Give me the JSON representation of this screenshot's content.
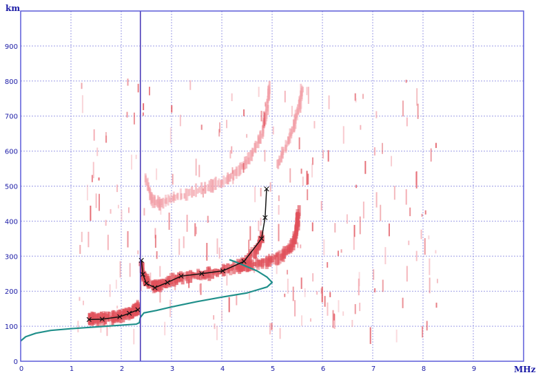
{
  "chart_data": {
    "type": "scatter",
    "title": "",
    "xlabel": "MHz",
    "ylabel": "km",
    "xlim": [
      0,
      10
    ],
    "ylim": [
      0,
      1000
    ],
    "x_ticks": [
      "0",
      "1",
      "2",
      "3",
      "4",
      "5",
      "6",
      "7",
      "8",
      "9"
    ],
    "y_ticks": [
      "0",
      "100",
      "200",
      "300",
      "400",
      "500",
      "600",
      "700",
      "800",
      "900"
    ],
    "grid": true,
    "cursor_x": 2.38,
    "colors": {
      "echo": "#e0505a",
      "echo_light": "#f2a0a8",
      "trace": "#111111",
      "profile": "#1f8f8a",
      "cursor": "#4a3bb8",
      "axis": "#5a5ad8",
      "grid": "#9a9ae6"
    },
    "series": [
      {
        "kind": "trace_markers",
        "points": [
          [
            1.36,
            119
          ],
          [
            1.62,
            120
          ],
          [
            1.97,
            127
          ],
          [
            2.16,
            137
          ],
          [
            2.33,
            147
          ],
          [
            2.4,
            288
          ],
          [
            2.43,
            248
          ],
          [
            2.5,
            222
          ],
          [
            2.67,
            210
          ],
          [
            2.92,
            225
          ],
          [
            3.19,
            243
          ],
          [
            3.6,
            250
          ],
          [
            4.02,
            258
          ],
          [
            4.44,
            285
          ],
          [
            4.79,
            350
          ],
          [
            4.86,
            410
          ],
          [
            4.89,
            492
          ]
        ]
      },
      {
        "kind": "profile_curve",
        "points": [
          [
            0.0,
            58
          ],
          [
            0.1,
            70
          ],
          [
            0.3,
            80
          ],
          [
            0.6,
            88
          ],
          [
            1.0,
            93
          ],
          [
            1.5,
            98
          ],
          [
            2.0,
            103
          ],
          [
            2.3,
            106
          ],
          [
            2.36,
            110
          ],
          [
            2.38,
            125
          ],
          [
            2.45,
            138
          ],
          [
            2.7,
            145
          ],
          [
            3.0,
            155
          ],
          [
            3.5,
            170
          ],
          [
            4.0,
            183
          ],
          [
            4.5,
            195
          ],
          [
            4.9,
            212
          ],
          [
            5.0,
            225
          ],
          [
            4.9,
            240
          ],
          [
            4.7,
            258
          ],
          [
            4.5,
            270
          ],
          [
            4.3,
            282
          ],
          [
            4.15,
            290
          ]
        ]
      },
      {
        "kind": "echo_E_layer",
        "points": [
          [
            1.35,
            120
          ],
          [
            1.5,
            121
          ],
          [
            1.7,
            123
          ],
          [
            1.9,
            127
          ],
          [
            2.05,
            132
          ],
          [
            2.2,
            140
          ],
          [
            2.3,
            148
          ],
          [
            2.36,
            155
          ]
        ]
      },
      {
        "kind": "echo_F_trace",
        "points": [
          [
            2.4,
            275
          ],
          [
            2.45,
            240
          ],
          [
            2.55,
            222
          ],
          [
            2.7,
            215
          ],
          [
            2.9,
            225
          ],
          [
            3.2,
            240
          ],
          [
            3.6,
            248
          ],
          [
            4.0,
            256
          ],
          [
            4.4,
            275
          ],
          [
            4.7,
            320
          ],
          [
            4.82,
            360
          ]
        ]
      },
      {
        "kind": "echo_F_extra",
        "points": [
          [
            4.3,
            268
          ],
          [
            4.6,
            275
          ],
          [
            4.9,
            285
          ],
          [
            5.2,
            300
          ],
          [
            5.4,
            330
          ],
          [
            5.5,
            380
          ],
          [
            5.52,
            430
          ]
        ]
      },
      {
        "kind": "echo_second_hop",
        "points": [
          [
            2.5,
            520
          ],
          [
            2.6,
            460
          ],
          [
            2.8,
            450
          ],
          [
            3.1,
            470
          ],
          [
            3.6,
            490
          ],
          [
            4.0,
            510
          ],
          [
            4.3,
            540
          ],
          [
            4.6,
            590
          ],
          [
            4.8,
            650
          ],
          [
            4.9,
            720
          ],
          [
            4.95,
            790
          ]
        ]
      },
      {
        "kind": "echo_second_hop_b",
        "points": [
          [
            5.1,
            560
          ],
          [
            5.3,
            620
          ],
          [
            5.45,
            680
          ],
          [
            5.55,
            730
          ],
          [
            5.6,
            780
          ]
        ]
      }
    ]
  }
}
